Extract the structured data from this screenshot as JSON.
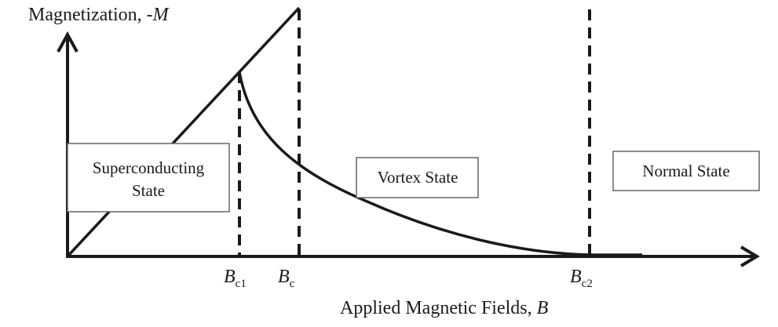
{
  "y_axis_title": {
    "text": "Magnetization, -",
    "symbol": "M"
  },
  "x_axis_title": {
    "text": "Applied Magnetic Fields, ",
    "symbol": "B"
  },
  "tick_labels": [
    {
      "symbol": "B",
      "subscript": "c1"
    },
    {
      "symbol": "B",
      "subscript": "c"
    },
    {
      "symbol": "B",
      "subscript": "c2"
    }
  ],
  "regions": {
    "superconducting": {
      "line1": "Superconducting",
      "line2": "State"
    },
    "vortex": {
      "label": "Vortex State"
    },
    "normal": {
      "label": "Normal State"
    }
  },
  "colors": {
    "ink": "#1a1a1a",
    "box_border": "#666666",
    "background": "#ffffff"
  }
}
